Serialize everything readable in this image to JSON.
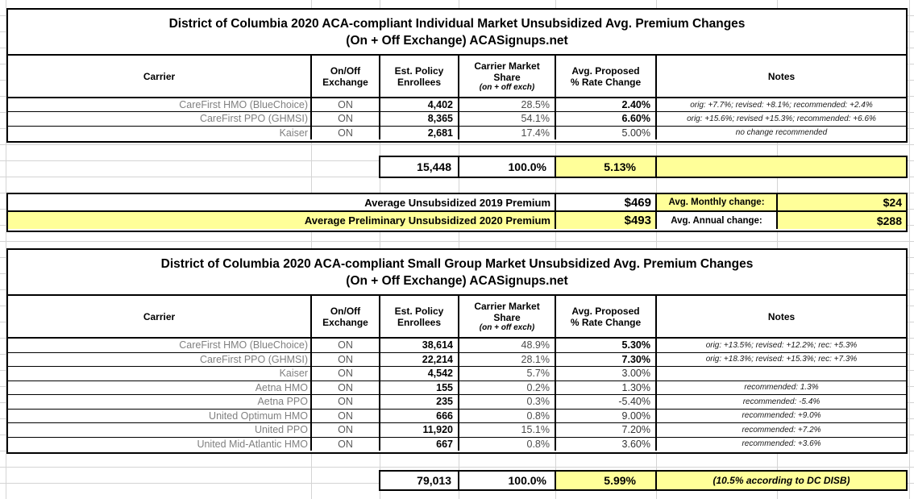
{
  "colors": {
    "highlight": "#ffff99",
    "gridline": "#d4d4d4",
    "border": "#000000",
    "carrier_text": "#808080"
  },
  "individual": {
    "title_line1": "District of Columbia 2020 ACA-compliant Individual Market Unsubsidized Avg. Premium Changes",
    "title_line2": "(On + Off Exchange) ACASignups.net",
    "headers": {
      "carrier": "Carrier",
      "exchange_l1": "On/Off",
      "exchange_l2": "Exchange",
      "enrollees_l1": "Est. Policy",
      "enrollees_l2": "Enrollees",
      "share_l1": "Carrier Market",
      "share_l2": "Share",
      "share_sub": "(on + off exch)",
      "rate_l1": "Avg. Proposed",
      "rate_l2": "% Rate Change",
      "notes": "Notes"
    },
    "rows": [
      {
        "carrier": "CareFirst HMO (BlueChoice)",
        "exchange": "ON",
        "enrollees": "4,402",
        "share": "28.5%",
        "rate": "2.40%",
        "rate_bold": true,
        "note": "orig: +7.7%; revised: +8.1%; recommended: +2.4%"
      },
      {
        "carrier": "CareFirst PPO (GHMSI)",
        "exchange": "ON",
        "enrollees": "8,365",
        "share": "54.1%",
        "rate": "6.60%",
        "rate_bold": true,
        "note": "orig: +15.6%; revised +15.3%; recommended: +6.6%"
      },
      {
        "carrier": "Kaiser",
        "exchange": "ON",
        "enrollees": "2,681",
        "share": "17.4%",
        "rate": "5.00%",
        "rate_bold": false,
        "note": "no change recommended"
      }
    ],
    "totals": {
      "enrollees": "15,448",
      "share": "100.0%",
      "rate": "5.13%",
      "note": ""
    }
  },
  "summary": {
    "rows": [
      {
        "label": "Average Unsubsidized 2019 Premium",
        "value": "$469",
        "change_label": "Avg. Monthly change:",
        "change_value": "$24"
      },
      {
        "label": "Average Preliminary Unsubsidized 2020 Premium",
        "value": "$493",
        "change_label": "Avg. Annual change:",
        "change_value": "$288"
      }
    ]
  },
  "small_group": {
    "title_line1": "District of Columbia 2020 ACA-compliant Small Group Market Unsubsidized Avg. Premium Changes",
    "title_line2": "(On + Off Exchange) ACASignups.net",
    "headers": {
      "carrier": "Carrier",
      "exchange_l1": "On/Off",
      "exchange_l2": "Exchange",
      "enrollees_l1": "Est. Policy",
      "enrollees_l2": "Enrollees",
      "share_l1": "Carrier Market",
      "share_l2": "Share",
      "share_sub": "(on + off exch)",
      "rate_l1": "Avg. Proposed",
      "rate_l2": "% Rate Change",
      "notes": "Notes"
    },
    "rows": [
      {
        "carrier": "CareFirst HMO (BlueChoice)",
        "exchange": "ON",
        "enrollees": "38,614",
        "share": "48.9%",
        "rate": "5.30%",
        "rate_bold": true,
        "note": "orig: +13.5%; revised: +12.2%; rec: +5.3%"
      },
      {
        "carrier": "CareFirst PPO (GHMSI)",
        "exchange": "ON",
        "enrollees": "22,214",
        "share": "28.1%",
        "rate": "7.30%",
        "rate_bold": true,
        "note": "orig: +18.3%; revised: +15.3%; rec: +7.3%"
      },
      {
        "carrier": "Kaiser",
        "exchange": "ON",
        "enrollees": "4,542",
        "share": "5.7%",
        "rate": "3.00%",
        "rate_bold": false,
        "note": ""
      },
      {
        "carrier": "Aetna HMO",
        "exchange": "ON",
        "enrollees": "155",
        "share": "0.2%",
        "rate": "1.30%",
        "rate_bold": false,
        "note": "recommended: 1.3%"
      },
      {
        "carrier": "Aetna PPO",
        "exchange": "ON",
        "enrollees": "235",
        "share": "0.3%",
        "rate": "-5.40%",
        "rate_bold": false,
        "note": "recommended: -5.4%"
      },
      {
        "carrier": "United Optimum HMO",
        "exchange": "ON",
        "enrollees": "666",
        "share": "0.8%",
        "rate": "9.00%",
        "rate_bold": false,
        "note": "recommended: +9.0%"
      },
      {
        "carrier": "United PPO",
        "exchange": "ON",
        "enrollees": "11,920",
        "share": "15.1%",
        "rate": "7.20%",
        "rate_bold": false,
        "note": "recommended: +7.2%"
      },
      {
        "carrier": "United Mid-Atlantic HMO",
        "exchange": "ON",
        "enrollees": "667",
        "share": "0.8%",
        "rate": "3.60%",
        "rate_bold": false,
        "note": "recommended: +3.6%"
      }
    ],
    "totals": {
      "enrollees": "79,013",
      "share": "100.0%",
      "rate": "5.99%",
      "note": "(10.5% according to DC DISB)"
    }
  }
}
